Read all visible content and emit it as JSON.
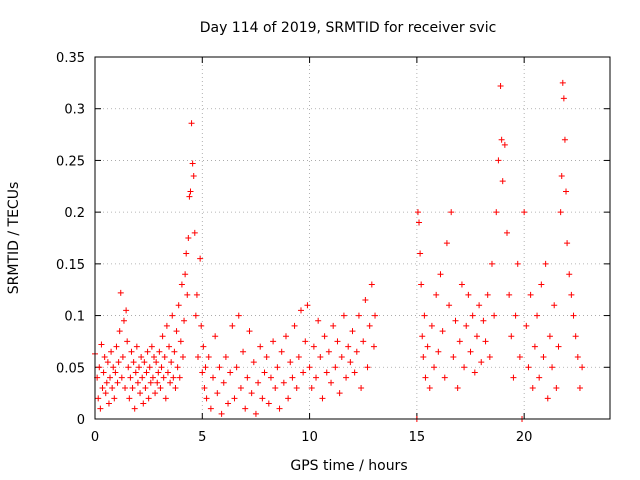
{
  "chart_data": {
    "type": "scatter",
    "title": "Day 114 of 2019, SRMTID for receiver svic",
    "xlabel": "GPS time / hours",
    "ylabel": "SRMTID / TECUs",
    "xlim": [
      0,
      24
    ],
    "ylim": [
      0,
      0.35
    ],
    "x_ticks": [
      "0",
      "5",
      "10",
      "15",
      "20"
    ],
    "x_tick_values": [
      0,
      5,
      10,
      15,
      20
    ],
    "y_ticks": [
      "0",
      "0.05",
      "0.1",
      "0.15",
      "0.2",
      "0.25",
      "0.3",
      "0.35"
    ],
    "y_tick_values": [
      0,
      0.05,
      0.1,
      0.15,
      0.2,
      0.25,
      0.3,
      0.35
    ],
    "grid": true,
    "marker": "plus",
    "color": "#ff0000",
    "points": [
      [
        0.0,
        0.063
      ],
      [
        0.1,
        0.04
      ],
      [
        0.15,
        0.02
      ],
      [
        0.2,
        0.05
      ],
      [
        0.25,
        0.01
      ],
      [
        0.3,
        0.072
      ],
      [
        0.35,
        0.03
      ],
      [
        0.4,
        0.045
      ],
      [
        0.45,
        0.06
      ],
      [
        0.5,
        0.025
      ],
      [
        0.55,
        0.035
      ],
      [
        0.6,
        0.055
      ],
      [
        0.65,
        0.015
      ],
      [
        0.7,
        0.04
      ],
      [
        0.75,
        0.065
      ],
      [
        0.8,
        0.03
      ],
      [
        0.85,
        0.05
      ],
      [
        0.9,
        0.02
      ],
      [
        0.95,
        0.045
      ],
      [
        1.0,
        0.07
      ],
      [
        1.05,
        0.035
      ],
      [
        1.1,
        0.055
      ],
      [
        1.15,
        0.085
      ],
      [
        1.2,
        0.122
      ],
      [
        1.25,
        0.04
      ],
      [
        1.3,
        0.06
      ],
      [
        1.35,
        0.095
      ],
      [
        1.4,
        0.03
      ],
      [
        1.45,
        0.105
      ],
      [
        1.5,
        0.075
      ],
      [
        1.55,
        0.05
      ],
      [
        1.6,
        0.02
      ],
      [
        1.65,
        0.04
      ],
      [
        1.7,
        0.065
      ],
      [
        1.75,
        0.03
      ],
      [
        1.8,
        0.055
      ],
      [
        1.85,
        0.01
      ],
      [
        1.9,
        0.045
      ],
      [
        1.95,
        0.07
      ],
      [
        2.0,
        0.035
      ],
      [
        2.05,
        0.05
      ],
      [
        2.1,
        0.025
      ],
      [
        2.15,
        0.06
      ],
      [
        2.2,
        0.04
      ],
      [
        2.25,
        0.015
      ],
      [
        2.3,
        0.055
      ],
      [
        2.35,
        0.03
      ],
      [
        2.4,
        0.045
      ],
      [
        2.45,
        0.065
      ],
      [
        2.5,
        0.02
      ],
      [
        2.55,
        0.05
      ],
      [
        2.6,
        0.035
      ],
      [
        2.65,
        0.07
      ],
      [
        2.7,
        0.04
      ],
      [
        2.75,
        0.06
      ],
      [
        2.8,
        0.025
      ],
      [
        2.85,
        0.055
      ],
      [
        2.9,
        0.035
      ],
      [
        2.95,
        0.045
      ],
      [
        3.0,
        0.065
      ],
      [
        3.05,
        0.03
      ],
      [
        3.1,
        0.05
      ],
      [
        3.15,
        0.08
      ],
      [
        3.2,
        0.04
      ],
      [
        3.25,
        0.06
      ],
      [
        3.3,
        0.02
      ],
      [
        3.35,
        0.09
      ],
      [
        3.4,
        0.045
      ],
      [
        3.45,
        0.07
      ],
      [
        3.5,
        0.035
      ],
      [
        3.55,
        0.055
      ],
      [
        3.6,
        0.1
      ],
      [
        3.65,
        0.04
      ],
      [
        3.7,
        0.065
      ],
      [
        3.75,
        0.03
      ],
      [
        3.8,
        0.085
      ],
      [
        3.85,
        0.05
      ],
      [
        3.9,
        0.11
      ],
      [
        3.95,
        0.04
      ],
      [
        4.0,
        0.075
      ],
      [
        4.05,
        0.13
      ],
      [
        4.1,
        0.06
      ],
      [
        4.15,
        0.095
      ],
      [
        4.2,
        0.14
      ],
      [
        4.25,
        0.16
      ],
      [
        4.3,
        0.12
      ],
      [
        4.35,
        0.175
      ],
      [
        4.4,
        0.215
      ],
      [
        4.45,
        0.22
      ],
      [
        4.5,
        0.286
      ],
      [
        4.55,
        0.247
      ],
      [
        4.6,
        0.235
      ],
      [
        4.65,
        0.18
      ],
      [
        4.7,
        0.1
      ],
      [
        4.75,
        0.12
      ],
      [
        4.8,
        0.06
      ],
      [
        4.9,
        0.155
      ],
      [
        4.95,
        0.09
      ],
      [
        5.0,
        0.045
      ],
      [
        5.05,
        0.07
      ],
      [
        5.1,
        0.03
      ],
      [
        5.15,
        0.05
      ],
      [
        5.2,
        0.02
      ],
      [
        5.3,
        0.06
      ],
      [
        5.4,
        0.01
      ],
      [
        5.5,
        0.04
      ],
      [
        5.6,
        0.08
      ],
      [
        5.7,
        0.025
      ],
      [
        5.8,
        0.05
      ],
      [
        5.9,
        0.005
      ],
      [
        6.0,
        0.035
      ],
      [
        6.1,
        0.06
      ],
      [
        6.2,
        0.015
      ],
      [
        6.3,
        0.045
      ],
      [
        6.4,
        0.09
      ],
      [
        6.5,
        0.02
      ],
      [
        6.6,
        0.05
      ],
      [
        6.7,
        0.1
      ],
      [
        6.8,
        0.03
      ],
      [
        6.9,
        0.065
      ],
      [
        7.0,
        0.01
      ],
      [
        7.1,
        0.04
      ],
      [
        7.2,
        0.085
      ],
      [
        7.3,
        0.025
      ],
      [
        7.4,
        0.055
      ],
      [
        7.5,
        0.005
      ],
      [
        7.6,
        0.035
      ],
      [
        7.7,
        0.07
      ],
      [
        7.8,
        0.02
      ],
      [
        7.9,
        0.045
      ],
      [
        8.0,
        0.06
      ],
      [
        8.1,
        0.015
      ],
      [
        8.2,
        0.04
      ],
      [
        8.3,
        0.075
      ],
      [
        8.4,
        0.03
      ],
      [
        8.5,
        0.05
      ],
      [
        8.6,
        0.01
      ],
      [
        8.7,
        0.065
      ],
      [
        8.8,
        0.035
      ],
      [
        8.9,
        0.08
      ],
      [
        9.0,
        0.02
      ],
      [
        9.1,
        0.055
      ],
      [
        9.2,
        0.04
      ],
      [
        9.3,
        0.09
      ],
      [
        9.4,
        0.03
      ],
      [
        9.5,
        0.06
      ],
      [
        9.6,
        0.105
      ],
      [
        9.7,
        0.045
      ],
      [
        9.8,
        0.075
      ],
      [
        9.9,
        0.11
      ],
      [
        10.0,
        0.05
      ],
      [
        10.1,
        0.03
      ],
      [
        10.2,
        0.07
      ],
      [
        10.3,
        0.04
      ],
      [
        10.4,
        0.095
      ],
      [
        10.5,
        0.06
      ],
      [
        10.6,
        0.02
      ],
      [
        10.7,
        0.08
      ],
      [
        10.8,
        0.045
      ],
      [
        10.9,
        0.065
      ],
      [
        11.0,
        0.035
      ],
      [
        11.1,
        0.09
      ],
      [
        11.2,
        0.05
      ],
      [
        11.3,
        0.075
      ],
      [
        11.4,
        0.025
      ],
      [
        11.5,
        0.06
      ],
      [
        11.6,
        0.1
      ],
      [
        11.7,
        0.04
      ],
      [
        11.8,
        0.07
      ],
      [
        11.9,
        0.055
      ],
      [
        12.0,
        0.085
      ],
      [
        12.1,
        0.045
      ],
      [
        12.2,
        0.065
      ],
      [
        12.3,
        0.1
      ],
      [
        12.4,
        0.03
      ],
      [
        12.5,
        0.075
      ],
      [
        12.6,
        0.115
      ],
      [
        12.7,
        0.05
      ],
      [
        12.8,
        0.09
      ],
      [
        12.9,
        0.13
      ],
      [
        13.0,
        0.07
      ],
      [
        13.05,
        0.1
      ],
      [
        15.0,
        0.0
      ],
      [
        15.05,
        0.2
      ],
      [
        15.1,
        0.19
      ],
      [
        15.15,
        0.16
      ],
      [
        15.2,
        0.13
      ],
      [
        15.25,
        0.08
      ],
      [
        15.3,
        0.06
      ],
      [
        15.35,
        0.1
      ],
      [
        15.4,
        0.04
      ],
      [
        15.5,
        0.07
      ],
      [
        15.6,
        0.03
      ],
      [
        15.7,
        0.09
      ],
      [
        15.8,
        0.05
      ],
      [
        15.9,
        0.12
      ],
      [
        16.0,
        0.065
      ],
      [
        16.1,
        0.14
      ],
      [
        16.2,
        0.085
      ],
      [
        16.3,
        0.04
      ],
      [
        16.4,
        0.17
      ],
      [
        16.5,
        0.11
      ],
      [
        16.6,
        0.2
      ],
      [
        16.7,
        0.06
      ],
      [
        16.8,
        0.095
      ],
      [
        16.9,
        0.03
      ],
      [
        17.0,
        0.075
      ],
      [
        17.1,
        0.13
      ],
      [
        17.2,
        0.05
      ],
      [
        17.3,
        0.09
      ],
      [
        17.4,
        0.12
      ],
      [
        17.5,
        0.065
      ],
      [
        17.6,
        0.1
      ],
      [
        17.7,
        0.045
      ],
      [
        17.8,
        0.08
      ],
      [
        17.9,
        0.11
      ],
      [
        18.0,
        0.055
      ],
      [
        18.1,
        0.095
      ],
      [
        18.2,
        0.075
      ],
      [
        18.3,
        0.12
      ],
      [
        18.4,
        0.06
      ],
      [
        18.5,
        0.15
      ],
      [
        18.6,
        0.1
      ],
      [
        18.7,
        0.2
      ],
      [
        18.8,
        0.25
      ],
      [
        18.9,
        0.322
      ],
      [
        18.95,
        0.27
      ],
      [
        19.0,
        0.23
      ],
      [
        19.1,
        0.265
      ],
      [
        19.2,
        0.18
      ],
      [
        19.3,
        0.12
      ],
      [
        19.4,
        0.08
      ],
      [
        19.5,
        0.04
      ],
      [
        19.6,
        0.1
      ],
      [
        19.7,
        0.15
      ],
      [
        19.8,
        0.06
      ],
      [
        19.9,
        0.0
      ],
      [
        20.0,
        0.2
      ],
      [
        20.1,
        0.09
      ],
      [
        20.2,
        0.05
      ],
      [
        20.3,
        0.12
      ],
      [
        20.4,
        0.03
      ],
      [
        20.5,
        0.07
      ],
      [
        20.6,
        0.1
      ],
      [
        20.7,
        0.04
      ],
      [
        20.8,
        0.13
      ],
      [
        20.9,
        0.06
      ],
      [
        21.0,
        0.15
      ],
      [
        21.1,
        0.02
      ],
      [
        21.2,
        0.08
      ],
      [
        21.3,
        0.05
      ],
      [
        21.4,
        0.11
      ],
      [
        21.5,
        0.03
      ],
      [
        21.6,
        0.07
      ],
      [
        21.7,
        0.2
      ],
      [
        21.75,
        0.235
      ],
      [
        21.8,
        0.325
      ],
      [
        21.85,
        0.31
      ],
      [
        21.9,
        0.27
      ],
      [
        21.95,
        0.22
      ],
      [
        22.0,
        0.17
      ],
      [
        22.1,
        0.14
      ],
      [
        22.2,
        0.12
      ],
      [
        22.3,
        0.1
      ],
      [
        22.4,
        0.08
      ],
      [
        22.5,
        0.06
      ],
      [
        22.6,
        0.03
      ],
      [
        22.7,
        0.05
      ]
    ]
  }
}
